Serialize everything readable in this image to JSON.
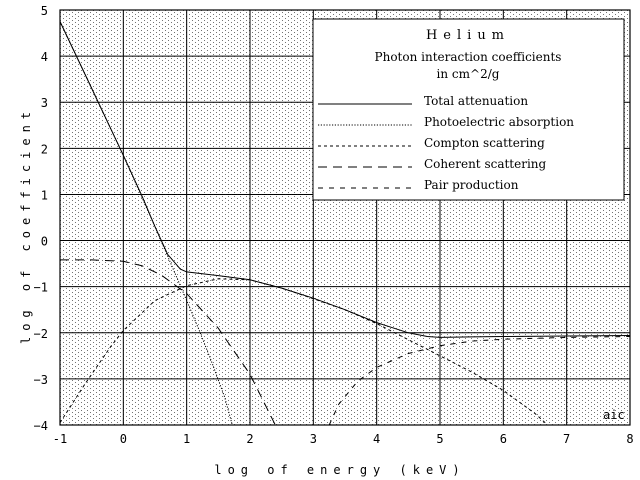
{
  "chart_data": {
    "type": "line",
    "title": "Helium",
    "subtitle_line1": "Photon interaction coefficients",
    "subtitle_line2": "in cm^2/g",
    "xlabel": "log of energy (keV)",
    "ylabel": "log of coefficient",
    "xlim": [
      -1,
      8
    ],
    "ylim": [
      -4,
      5
    ],
    "x_ticks": [
      "-1",
      "0",
      "1",
      "2",
      "3",
      "4",
      "5",
      "6",
      "7",
      "8"
    ],
    "y_ticks": [
      "5",
      "4",
      "3",
      "2",
      "1",
      "0",
      "−1",
      "−2",
      "−3",
      "−4"
    ],
    "grid": true,
    "legend_position": "top-right",
    "credit": "aic",
    "series": [
      {
        "name": "Total attenuation",
        "style": "solid",
        "points": [
          [
            -1,
            4.75
          ],
          [
            -0.5,
            3.3
          ],
          [
            0,
            1.85
          ],
          [
            0.3,
            0.95
          ],
          [
            0.5,
            0.3
          ],
          [
            0.7,
            -0.3
          ],
          [
            0.9,
            -0.62
          ],
          [
            1,
            -0.68
          ],
          [
            1.5,
            -0.76
          ],
          [
            2,
            -0.85
          ],
          [
            2.5,
            -1.03
          ],
          [
            3,
            -1.25
          ],
          [
            3.5,
            -1.5
          ],
          [
            4,
            -1.78
          ],
          [
            4.5,
            -2.0
          ],
          [
            4.8,
            -2.08
          ],
          [
            5,
            -2.1
          ],
          [
            5.5,
            -2.09
          ],
          [
            6,
            -2.08
          ],
          [
            7,
            -2.07
          ],
          [
            8,
            -2.06
          ]
        ]
      },
      {
        "name": "Photoelectric absorption",
        "style": "dotted",
        "points": [
          [
            -1,
            4.75
          ],
          [
            -0.5,
            3.3
          ],
          [
            0,
            1.85
          ],
          [
            0.5,
            0.3
          ],
          [
            1,
            -1.3
          ],
          [
            1.2,
            -1.95
          ],
          [
            1.4,
            -2.65
          ],
          [
            1.6,
            -3.4
          ],
          [
            1.72,
            -4
          ]
        ]
      },
      {
        "name": "Compton scattering",
        "style": "short-dash",
        "points": [
          [
            -1,
            -3.95
          ],
          [
            -0.6,
            -3.1
          ],
          [
            -0.2,
            -2.3
          ],
          [
            0,
            -1.95
          ],
          [
            0.5,
            -1.3
          ],
          [
            1,
            -0.98
          ],
          [
            1.5,
            -0.83
          ],
          [
            2,
            -0.85
          ],
          [
            2.5,
            -1.03
          ],
          [
            3,
            -1.26
          ],
          [
            3.5,
            -1.5
          ],
          [
            4,
            -1.8
          ],
          [
            4.5,
            -2.15
          ],
          [
            5,
            -2.5
          ],
          [
            5.5,
            -2.85
          ],
          [
            6,
            -3.25
          ],
          [
            6.5,
            -3.75
          ],
          [
            6.7,
            -4
          ]
        ]
      },
      {
        "name": "Coherent scattering",
        "style": "long-dash",
        "points": [
          [
            -1,
            -0.42
          ],
          [
            -0.5,
            -0.42
          ],
          [
            0,
            -0.45
          ],
          [
            0.3,
            -0.55
          ],
          [
            0.6,
            -0.75
          ],
          [
            1,
            -1.15
          ],
          [
            1.5,
            -1.9
          ],
          [
            2,
            -2.9
          ],
          [
            2.4,
            -4
          ]
        ]
      },
      {
        "name": "Pair production",
        "style": "dash-dot",
        "points": [
          [
            3.25,
            -4
          ],
          [
            3.4,
            -3.55
          ],
          [
            3.7,
            -3.05
          ],
          [
            4,
            -2.75
          ],
          [
            4.5,
            -2.45
          ],
          [
            5,
            -2.28
          ],
          [
            5.5,
            -2.18
          ],
          [
            6,
            -2.14
          ],
          [
            7,
            -2.1
          ],
          [
            8,
            -2.08
          ]
        ]
      }
    ]
  }
}
